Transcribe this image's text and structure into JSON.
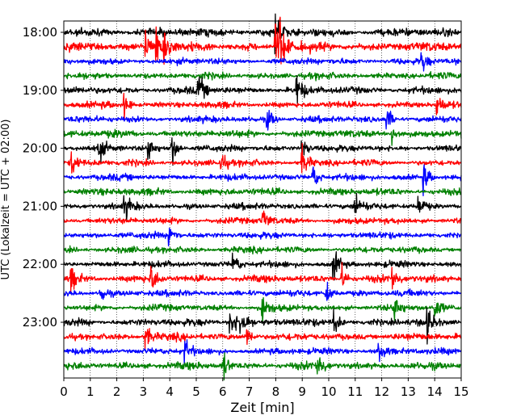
{
  "chart_data": {
    "type": "line",
    "title": "",
    "xlabel": "Zeit  [min]",
    "ylabel": "UTC (Lokalzeit = UTC + 02:00)",
    "xlim": [
      0,
      15
    ],
    "x_ticks": [
      0,
      1,
      2,
      3,
      4,
      5,
      6,
      7,
      8,
      9,
      10,
      11,
      12,
      13,
      14,
      15
    ],
    "x_tick_labels": [
      "0",
      "1",
      "2",
      "3",
      "4",
      "5",
      "6",
      "7",
      "8",
      "9",
      "10",
      "11",
      "12",
      "13",
      "14",
      "15"
    ],
    "y_tick_labels": [
      "18:00",
      "19:00",
      "20:00",
      "21:00",
      "22:00",
      "23:00"
    ],
    "grid": "x-dotted",
    "rows_per_hour": 4,
    "minutes_per_row": 15,
    "trace_colors": [
      "#000000",
      "#ff0000",
      "#0000ff",
      "#008000"
    ],
    "series": [
      {
        "start": "18:00",
        "amplitude": 1.0,
        "events": [
          [
            8.0,
            2.6
          ]
        ]
      },
      {
        "start": "18:15",
        "amplitude": 1.1,
        "events": [
          [
            3.1,
            1.8
          ],
          [
            3.5,
            2.3
          ],
          [
            3.8,
            2.0
          ],
          [
            8.0,
            2.8
          ],
          [
            8.2,
            2.2
          ]
        ]
      },
      {
        "start": "18:30",
        "amplitude": 0.8,
        "events": [
          [
            13.5,
            1.3
          ]
        ]
      },
      {
        "start": "18:45",
        "amplitude": 0.8,
        "events": []
      },
      {
        "start": "19:00",
        "amplitude": 0.9,
        "events": [
          [
            5.1,
            1.6
          ],
          [
            8.8,
            1.8
          ]
        ]
      },
      {
        "start": "19:15",
        "amplitude": 0.8,
        "events": [
          [
            2.3,
            1.3
          ],
          [
            14.1,
            1.3
          ]
        ]
      },
      {
        "start": "19:30",
        "amplitude": 0.8,
        "events": [
          [
            7.7,
            1.3
          ],
          [
            12.2,
            1.4
          ]
        ]
      },
      {
        "start": "19:45",
        "amplitude": 0.9,
        "events": [
          [
            12.4,
            1.2
          ]
        ]
      },
      {
        "start": "20:00",
        "amplitude": 0.8,
        "events": [
          [
            1.3,
            1.5
          ],
          [
            3.2,
            1.4
          ],
          [
            4.1,
            1.8
          ],
          [
            9.0,
            1.3
          ]
        ]
      },
      {
        "start": "20:15",
        "amplitude": 0.8,
        "events": [
          [
            0.3,
            1.4
          ],
          [
            5.9,
            1.5
          ],
          [
            9.0,
            1.8
          ]
        ]
      },
      {
        "start": "20:30",
        "amplitude": 0.8,
        "events": [
          [
            9.4,
            1.6
          ],
          [
            13.6,
            1.5
          ]
        ]
      },
      {
        "start": "20:45",
        "amplitude": 0.9,
        "events": []
      },
      {
        "start": "21:00",
        "amplitude": 0.8,
        "events": [
          [
            2.3,
            1.4
          ],
          [
            11.0,
            1.4
          ],
          [
            13.4,
            1.3
          ]
        ]
      },
      {
        "start": "21:15",
        "amplitude": 0.8,
        "events": [
          [
            7.5,
            1.3
          ]
        ]
      },
      {
        "start": "21:30",
        "amplitude": 0.8,
        "events": [
          [
            4.0,
            1.4
          ]
        ]
      },
      {
        "start": "21:45",
        "amplitude": 0.8,
        "events": []
      },
      {
        "start": "22:00",
        "amplitude": 0.8,
        "events": [
          [
            6.4,
            1.4
          ],
          [
            10.2,
            1.8
          ]
        ]
      },
      {
        "start": "22:15",
        "amplitude": 0.9,
        "events": [
          [
            0.3,
            1.3
          ],
          [
            3.3,
            1.5
          ],
          [
            10.5,
            1.4
          ],
          [
            12.4,
            1.4
          ]
        ]
      },
      {
        "start": "22:30",
        "amplitude": 0.8,
        "events": [
          [
            1.4,
            1.3
          ],
          [
            9.9,
            1.3
          ]
        ]
      },
      {
        "start": "22:45",
        "amplitude": 0.8,
        "events": [
          [
            7.5,
            1.6
          ],
          [
            12.5,
            1.4
          ],
          [
            14.0,
            1.4
          ]
        ]
      },
      {
        "start": "23:00",
        "amplitude": 0.9,
        "events": [
          [
            6.3,
            2.0
          ],
          [
            6.7,
            1.9
          ],
          [
            10.2,
            1.5
          ],
          [
            13.7,
            1.8
          ]
        ]
      },
      {
        "start": "23:15",
        "amplitude": 0.9,
        "events": [
          [
            3.1,
            1.4
          ],
          [
            6.9,
            1.4
          ]
        ]
      },
      {
        "start": "23:30",
        "amplitude": 0.8,
        "events": [
          [
            4.6,
            1.3
          ],
          [
            11.9,
            1.3
          ]
        ]
      },
      {
        "start": "23:45",
        "amplitude": 0.9,
        "events": [
          [
            6.0,
            1.8
          ],
          [
            9.6,
            1.6
          ]
        ]
      }
    ]
  }
}
